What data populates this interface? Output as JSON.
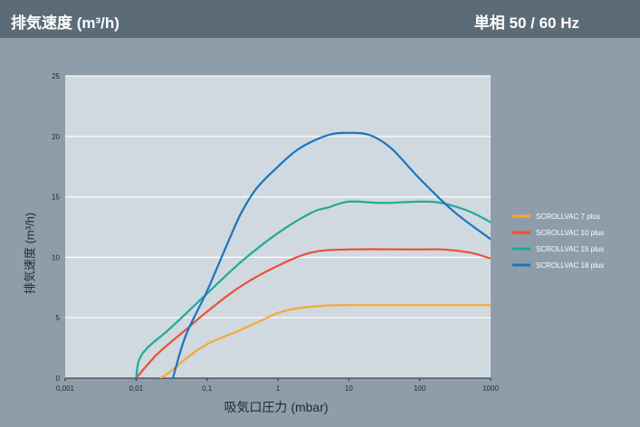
{
  "header": {
    "title": "排気速度 (m³/h)",
    "spec": "単相 50 / 60 Hz"
  },
  "chart_data": {
    "type": "line",
    "x_scale": "log",
    "xlabel": "吸気口圧力 (mbar)",
    "ylabel": "排気速度 (m³/h)",
    "xlim": [
      0.001,
      1000
    ],
    "ylim": [
      0,
      25
    ],
    "x_ticks": [
      "0,001",
      "0,01",
      "0,1",
      "1",
      "10",
      "100",
      "1000"
    ],
    "y_ticks": [
      "0",
      "5",
      "10",
      "15",
      "20",
      "25"
    ],
    "grid": "horizontal",
    "legend_position": "right",
    "series": [
      {
        "name": "SCROLLVAC 7 plus",
        "color": "#f5a93b",
        "points": [
          [
            0.022,
            0
          ],
          [
            0.03,
            0.5
          ],
          [
            0.05,
            1.6
          ],
          [
            0.1,
            2.8
          ],
          [
            0.3,
            4.0
          ],
          [
            0.6,
            4.8
          ],
          [
            1,
            5.4
          ],
          [
            2,
            5.8
          ],
          [
            5,
            6.0
          ],
          [
            10,
            6.05
          ],
          [
            100,
            6.05
          ],
          [
            1000,
            6.05
          ]
        ]
      },
      {
        "name": "SCROLLVAC 10 plus",
        "color": "#e8513a",
        "points": [
          [
            0.01,
            0
          ],
          [
            0.02,
            2.0
          ],
          [
            0.05,
            4.0
          ],
          [
            0.1,
            5.5
          ],
          [
            0.3,
            7.6
          ],
          [
            1,
            9.3
          ],
          [
            3,
            10.4
          ],
          [
            10,
            10.65
          ],
          [
            100,
            10.65
          ],
          [
            200,
            10.65
          ],
          [
            500,
            10.4
          ],
          [
            1000,
            9.9
          ]
        ]
      },
      {
        "name": "SCROLLVAC 15 plus",
        "color": "#22a89a",
        "points": [
          [
            0.01,
            0
          ],
          [
            0.011,
            1.5
          ],
          [
            0.015,
            2.6
          ],
          [
            0.03,
            4.1
          ],
          [
            0.1,
            7.0
          ],
          [
            0.3,
            9.6
          ],
          [
            1,
            12.0
          ],
          [
            3,
            13.7
          ],
          [
            5,
            14.1
          ],
          [
            10,
            14.6
          ],
          [
            30,
            14.5
          ],
          [
            100,
            14.6
          ],
          [
            200,
            14.5
          ],
          [
            500,
            13.8
          ],
          [
            1000,
            12.9
          ]
        ]
      },
      {
        "name": "SCROLLVAC 18 plus",
        "color": "#1c74bf",
        "points": [
          [
            0.033,
            0
          ],
          [
            0.05,
            3.5
          ],
          [
            0.1,
            7.2
          ],
          [
            0.2,
            11.3
          ],
          [
            0.3,
            13.6
          ],
          [
            0.5,
            15.7
          ],
          [
            1,
            17.5
          ],
          [
            2,
            19.0
          ],
          [
            5,
            20.1
          ],
          [
            10,
            20.3
          ],
          [
            20,
            20.1
          ],
          [
            40,
            19.0
          ],
          [
            100,
            16.5
          ],
          [
            300,
            13.8
          ],
          [
            1000,
            11.5
          ]
        ]
      }
    ]
  }
}
